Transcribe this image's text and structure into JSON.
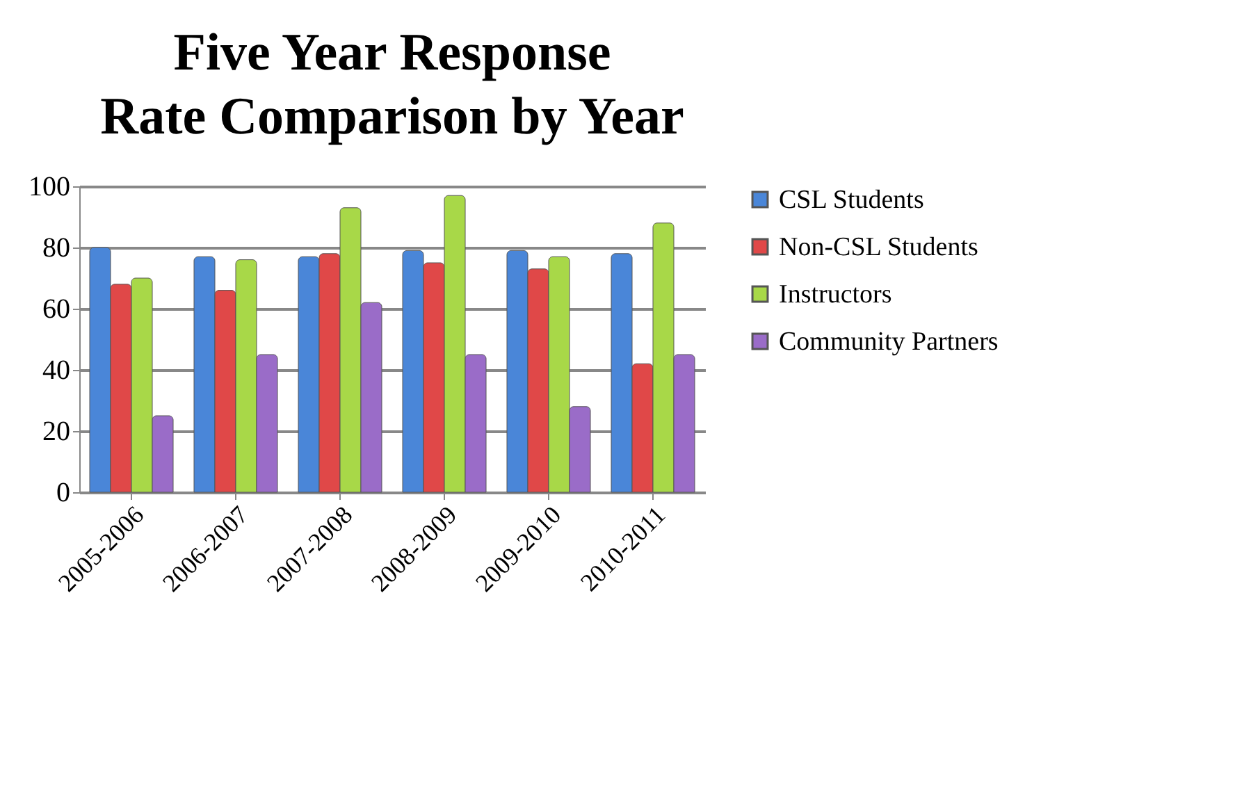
{
  "chart_data": {
    "type": "bar",
    "title": "Five Year Response Rate Comparison by Year",
    "categories": [
      "2005-2006",
      "2006-2007",
      "2007-2008",
      "2008-2009",
      "2009-2010",
      "2010-2011"
    ],
    "series": [
      {
        "name": "CSL Students",
        "color": "#4a86d8",
        "values": [
          80,
          77,
          77,
          79,
          79,
          78
        ]
      },
      {
        "name": "Non-CSL Students",
        "color": "#e04848",
        "values": [
          68,
          66,
          78,
          75,
          73,
          42
        ]
      },
      {
        "name": "Instructors",
        "color": "#a8d848",
        "values": [
          70,
          76,
          93,
          97,
          77,
          88
        ]
      },
      {
        "name": "Community Partners",
        "color": "#9a6cc8",
        "values": [
          25,
          45,
          62,
          45,
          28,
          45
        ]
      }
    ],
    "ylim": [
      0,
      100
    ],
    "yticks": [
      0,
      20,
      40,
      60,
      80,
      100
    ],
    "grid": "y",
    "legend": "right"
  }
}
